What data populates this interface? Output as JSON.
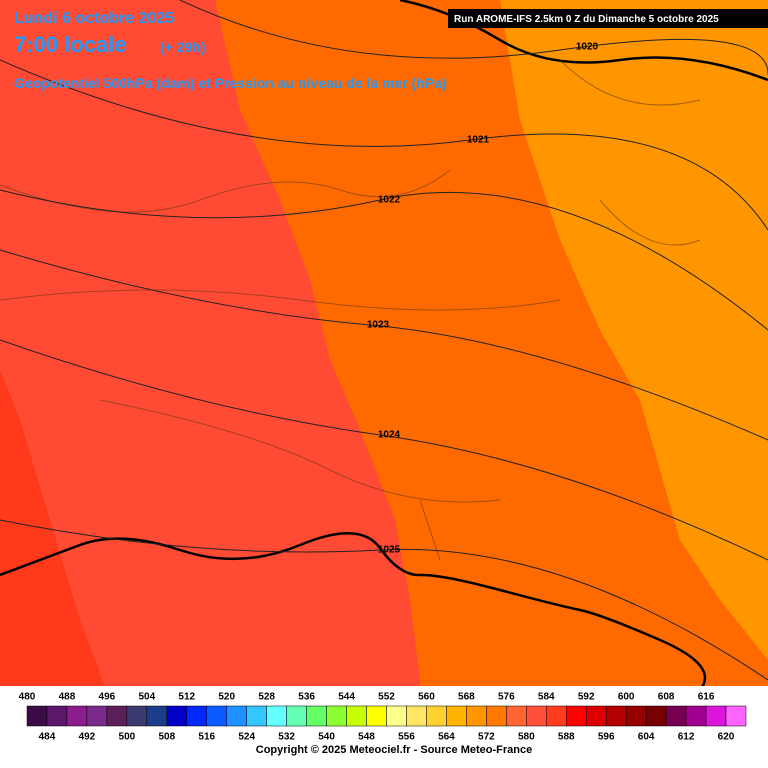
{
  "header": {
    "date": "Lundi 6 octobre 2025",
    "time": "7:00 locale",
    "lead": "(+ 29h)",
    "subtitle": "Geopotentiel 500hPa (dam) et Pression au niveau de la mer (hPa)",
    "run": "Run AROME-IFS 2.5km 0 Z du Dimanche 5 octobre 2025"
  },
  "isobars": {
    "labels": [
      "1020",
      "1021",
      "1022",
      "1023",
      "1024",
      "1025"
    ]
  },
  "legend": {
    "values": [
      480,
      484,
      488,
      492,
      496,
      500,
      504,
      508,
      512,
      516,
      520,
      524,
      528,
      532,
      536,
      540,
      544,
      548,
      552,
      556,
      560,
      564,
      568,
      572,
      576,
      580,
      584,
      588,
      592,
      596,
      600,
      604,
      608,
      612,
      616,
      620
    ],
    "colors": [
      "#3c0a46",
      "#5c166a",
      "#8c1e8c",
      "#7a2a8a",
      "#5a1e5a",
      "#3a3a6e",
      "#1e3c8c",
      "#0000c8",
      "#0028ff",
      "#0a5aff",
      "#1e90ff",
      "#32c8ff",
      "#64ffff",
      "#64ffb4",
      "#64ff64",
      "#8cff32",
      "#c8ff00",
      "#ffff00",
      "#ffff8c",
      "#ffe664",
      "#ffd232",
      "#ffb400",
      "#ff9600",
      "#ff7800",
      "#ff6432",
      "#ff503c",
      "#ff3c1e",
      "#ff0000",
      "#dc0000",
      "#b40000",
      "#960000",
      "#780000",
      "#780050",
      "#a00090",
      "#dc14dc",
      "#ff64ff"
    ]
  },
  "footer": "Copyright © 2025 Meteociel.fr - Source Meteo-France"
}
